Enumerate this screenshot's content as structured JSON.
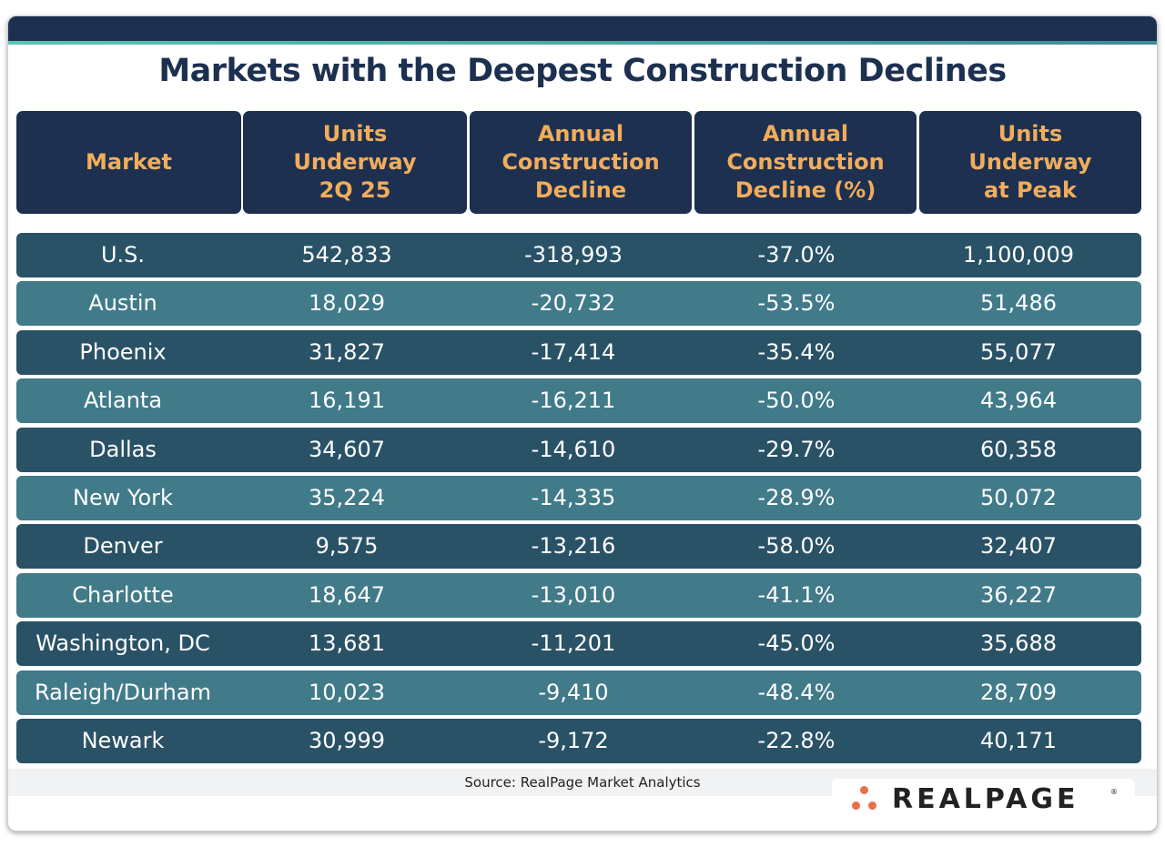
{
  "title": "Markets with the Deepest Construction Declines",
  "headers": [
    "Market",
    "Units\nUnderway\n2Q 25",
    "Annual\nConstruction\nDecline",
    "Annual\nConstruction\nDecline (%)",
    "Units\nUnderway\nat Peak"
  ],
  "source": "Source: RealPage Market Analytics",
  "logo": {
    "text": "REALPAGE",
    "registered": "®"
  },
  "colors": {
    "navy": "#1d3050",
    "header_text": "#f2ad5b",
    "row_dark": "#2a5266",
    "row_light": "#417a89",
    "accent_teal": "#5cc2b2",
    "logo_dot": "#e8704a"
  },
  "chart_data": {
    "type": "table",
    "title": "Markets with the Deepest Construction Declines",
    "columns": [
      "Market",
      "Units Underway 2Q 25",
      "Annual Construction Decline",
      "Annual Construction Decline (%)",
      "Units Underway at Peak"
    ],
    "rows": [
      [
        "U.S.",
        "542,833",
        "-318,993",
        "-37.0%",
        "1,100,009"
      ],
      [
        "Austin",
        "18,029",
        "-20,732",
        "-53.5%",
        "51,486"
      ],
      [
        "Phoenix",
        "31,827",
        "-17,414",
        "-35.4%",
        "55,077"
      ],
      [
        "Atlanta",
        "16,191",
        "-16,211",
        "-50.0%",
        "43,964"
      ],
      [
        "Dallas",
        "34,607",
        "-14,610",
        "-29.7%",
        "60,358"
      ],
      [
        "New York",
        "35,224",
        "-14,335",
        "-28.9%",
        "50,072"
      ],
      [
        "Denver",
        "9,575",
        "-13,216",
        "-58.0%",
        "32,407"
      ],
      [
        "Charlotte",
        "18,647",
        "-13,010",
        "-41.1%",
        "36,227"
      ],
      [
        "Washington, DC",
        "13,681",
        "-11,201",
        "-45.0%",
        "35,688"
      ],
      [
        "Raleigh/Durham",
        "10,023",
        "-9,410",
        "-48.4%",
        "28,709"
      ],
      [
        "Newark",
        "30,999",
        "-9,172",
        "-22.8%",
        "40,171"
      ]
    ]
  }
}
